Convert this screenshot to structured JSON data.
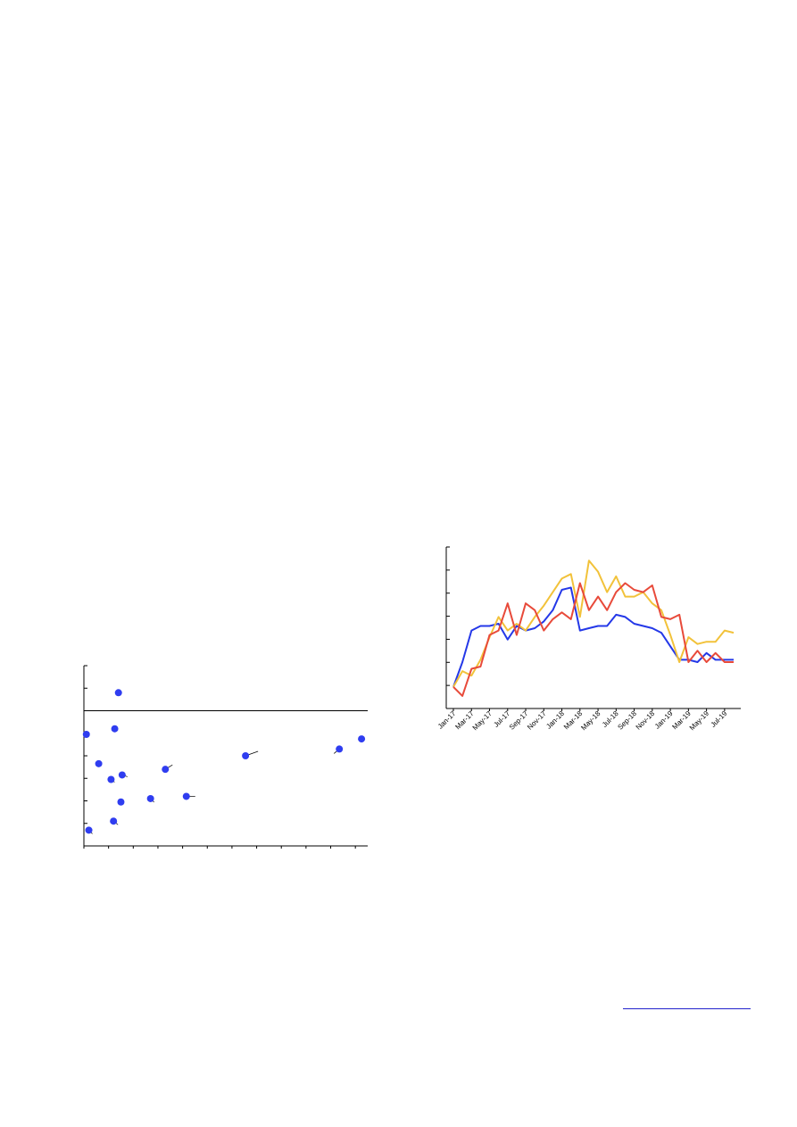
{
  "chart_data": [
    {
      "type": "scatter",
      "color": "#2f3df0",
      "grid": false,
      "xlim": [
        0,
        11.5
      ],
      "ylim": [
        -6,
        2
      ],
      "reference_line_y": 0,
      "points": [
        {
          "x": 0.1,
          "y": -1.05
        },
        {
          "x": 0.2,
          "y": -5.3
        },
        {
          "x": 0.6,
          "y": -2.35
        },
        {
          "x": 1.1,
          "y": -3.05
        },
        {
          "x": 1.2,
          "y": -4.9
        },
        {
          "x": 1.25,
          "y": -0.8
        },
        {
          "x": 1.4,
          "y": 0.8
        },
        {
          "x": 1.5,
          "y": -4.05
        },
        {
          "x": 1.55,
          "y": -2.85
        },
        {
          "x": 2.7,
          "y": -3.9
        },
        {
          "x": 3.3,
          "y": -2.6
        },
        {
          "x": 4.15,
          "y": -3.8
        },
        {
          "x": 6.55,
          "y": -2.0
        },
        {
          "x": 10.35,
          "y": -1.7
        },
        {
          "x": 11.25,
          "y": -1.25
        }
      ]
    },
    {
      "type": "line",
      "categories": [
        "Jan-17",
        "Feb-17",
        "Mar-17",
        "Apr-17",
        "May-17",
        "Jun-17",
        "Jul-17",
        "Aug-17",
        "Sep-17",
        "Oct-17",
        "Nov-17",
        "Dec-17",
        "Jan-18",
        "Feb-18",
        "Mar-18",
        "Apr-18",
        "May-18",
        "Jun-18",
        "Jul-18",
        "Aug-18",
        "Sep-18",
        "Oct-18",
        "Nov-18",
        "Dec-18",
        "Jan-19",
        "Feb-19",
        "Mar-19",
        "Apr-19",
        "May-19",
        "Jun-19",
        "Jul-19",
        "Aug-19"
      ],
      "x_tick_labels": [
        "Jan-17",
        "Mar-17",
        "May-17",
        "Jul-17",
        "Sep-17",
        "Nov-17",
        "Jan-18",
        "Mar-18",
        "May-18",
        "Jul-18",
        "Sep-18",
        "Nov-18",
        "Jan-19",
        "Mar-19",
        "May-19",
        "Jul-19"
      ],
      "ylim": [
        0,
        7
      ],
      "grid": false,
      "series": [
        {
          "color": "#2438e8",
          "values": [
            0.8,
            1.9,
            3.3,
            3.5,
            3.5,
            3.6,
            2.9,
            3.5,
            3.3,
            3.4,
            3.7,
            4.2,
            5.1,
            5.2,
            3.3,
            3.4,
            3.5,
            3.5,
            4.0,
            3.9,
            3.6,
            3.5,
            3.4,
            3.2,
            2.6,
            2.0,
            2.0,
            1.9,
            2.3,
            2.0,
            2.0,
            2.0
          ]
        },
        {
          "color": "#f2c23a",
          "values": [
            0.8,
            1.5,
            1.3,
            2.0,
            3.0,
            3.9,
            3.3,
            3.6,
            3.3,
            3.9,
            4.4,
            5.0,
            5.6,
            5.8,
            3.9,
            6.4,
            5.9,
            5.0,
            5.7,
            4.8,
            4.8,
            5.0,
            4.5,
            4.2,
            3.1,
            1.9,
            3.0,
            2.7,
            2.8,
            2.8,
            3.3,
            3.2
          ]
        },
        {
          "color": "#e84a3a",
          "values": [
            0.8,
            0.4,
            1.6,
            1.7,
            3.1,
            3.3,
            4.5,
            3.1,
            4.5,
            4.2,
            3.3,
            3.8,
            4.1,
            3.8,
            5.4,
            4.2,
            4.8,
            4.2,
            5.0,
            5.4,
            5.1,
            5.0,
            5.3,
            3.9,
            3.8,
            4.0,
            1.9,
            2.4,
            1.9,
            2.3,
            1.9,
            1.9
          ]
        }
      ]
    }
  ]
}
